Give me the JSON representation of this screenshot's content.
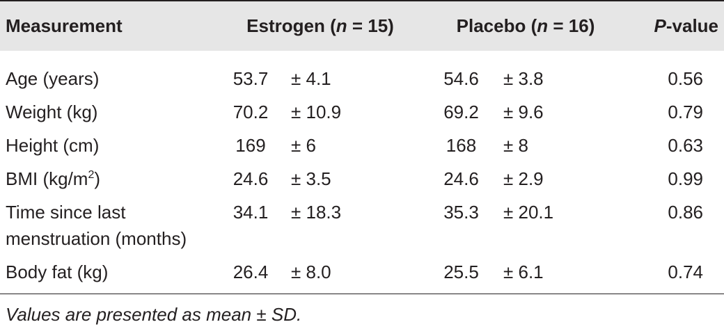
{
  "table": {
    "header": [
      "Measurement",
      [
        "Estrogen (",
        "n",
        " = 15)"
      ],
      [
        "Placebo (",
        "n",
        " = 16)"
      ],
      [
        "P",
        "-value"
      ]
    ],
    "rows": [
      [
        "Age (years)",
        "53.7",
        "± 4.1",
        "54.6",
        "± 3.8",
        "0.56"
      ],
      [
        "Weight (kg)",
        "70.2",
        "± 10.9",
        "69.2",
        "± 9.6",
        "0.79"
      ],
      [
        "Height (cm)",
        "169",
        "± 6",
        "168",
        "± 8",
        "0.63"
      ],
      [
        [
          "BMI (kg/m",
          "2",
          ")"
        ],
        "24.6",
        "± 3.5",
        "24.6",
        "± 2.9",
        "0.99"
      ],
      [
        "Time since last menstruation (months)",
        "34.1",
        "± 18.3",
        "35.3",
        "± 20.1",
        "0.86"
      ],
      [
        "Body fat (kg)",
        "26.4",
        "± 8.0",
        "25.5",
        "± 6.1",
        "0.74"
      ]
    ],
    "footnote": "Values are presented as mean ± SD."
  }
}
